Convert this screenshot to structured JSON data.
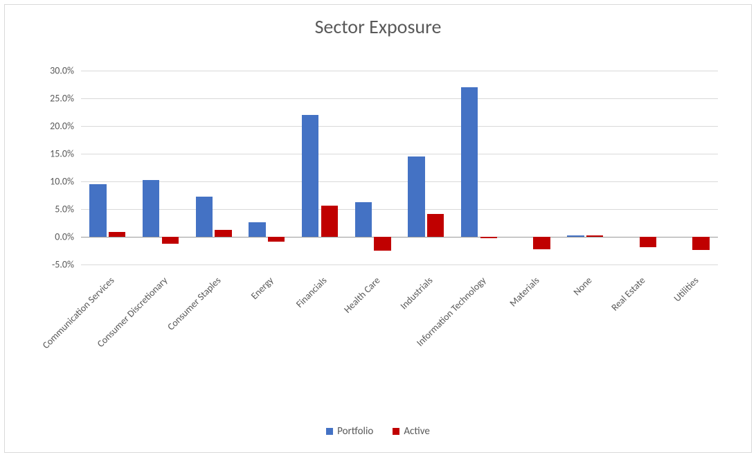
{
  "chart": {
    "type": "bar",
    "title": "Sector Exposure",
    "title_fontsize": 28,
    "title_color": "#595959",
    "frame_border_color": "#d9d9d9",
    "plot_background_color": "#ffffff",
    "grid_color": "#d9d9d9",
    "axis_label_color": "#595959",
    "axis_label_fontsize": 14,
    "x_label_rotation_deg": -45,
    "ylim_min_pct": -5.0,
    "ylim_max_pct": 30.0,
    "ytick_step_pct": 5.0,
    "ytick_labels": [
      "-5.0%",
      "0.0%",
      "5.0%",
      "10.0%",
      "15.0%",
      "20.0%",
      "25.0%",
      "30.0%"
    ],
    "bar_group_gap_ratio": 0.32,
    "bar_inner_gap_ratio": 0.04,
    "categories": [
      "Communication Services",
      "Consumer Discretionary",
      "Consumer Staples",
      "Energy",
      "Financials",
      "Health Care",
      "Industrials",
      "Information Technology",
      "Materials",
      "None",
      "Real Estate",
      "Utilities"
    ],
    "series": [
      {
        "name": "Portfolio",
        "color": "#4472c4",
        "values_pct": [
          9.5,
          10.3,
          7.3,
          2.6,
          22.0,
          6.3,
          14.5,
          27.0,
          0.0,
          0.3,
          0.0,
          0.0
        ]
      },
      {
        "name": "Active",
        "color": "#c00000",
        "values_pct": [
          0.9,
          -1.2,
          1.2,
          -0.9,
          5.6,
          -2.5,
          4.1,
          -0.3,
          -2.3,
          0.3,
          -1.9,
          -2.4
        ]
      }
    ],
    "legend": {
      "position": "bottom",
      "fontsize": 15,
      "color": "#595959",
      "items": [
        {
          "label": "Portfolio",
          "swatch": "#4472c4"
        },
        {
          "label": "Active",
          "swatch": "#c00000"
        }
      ]
    }
  }
}
